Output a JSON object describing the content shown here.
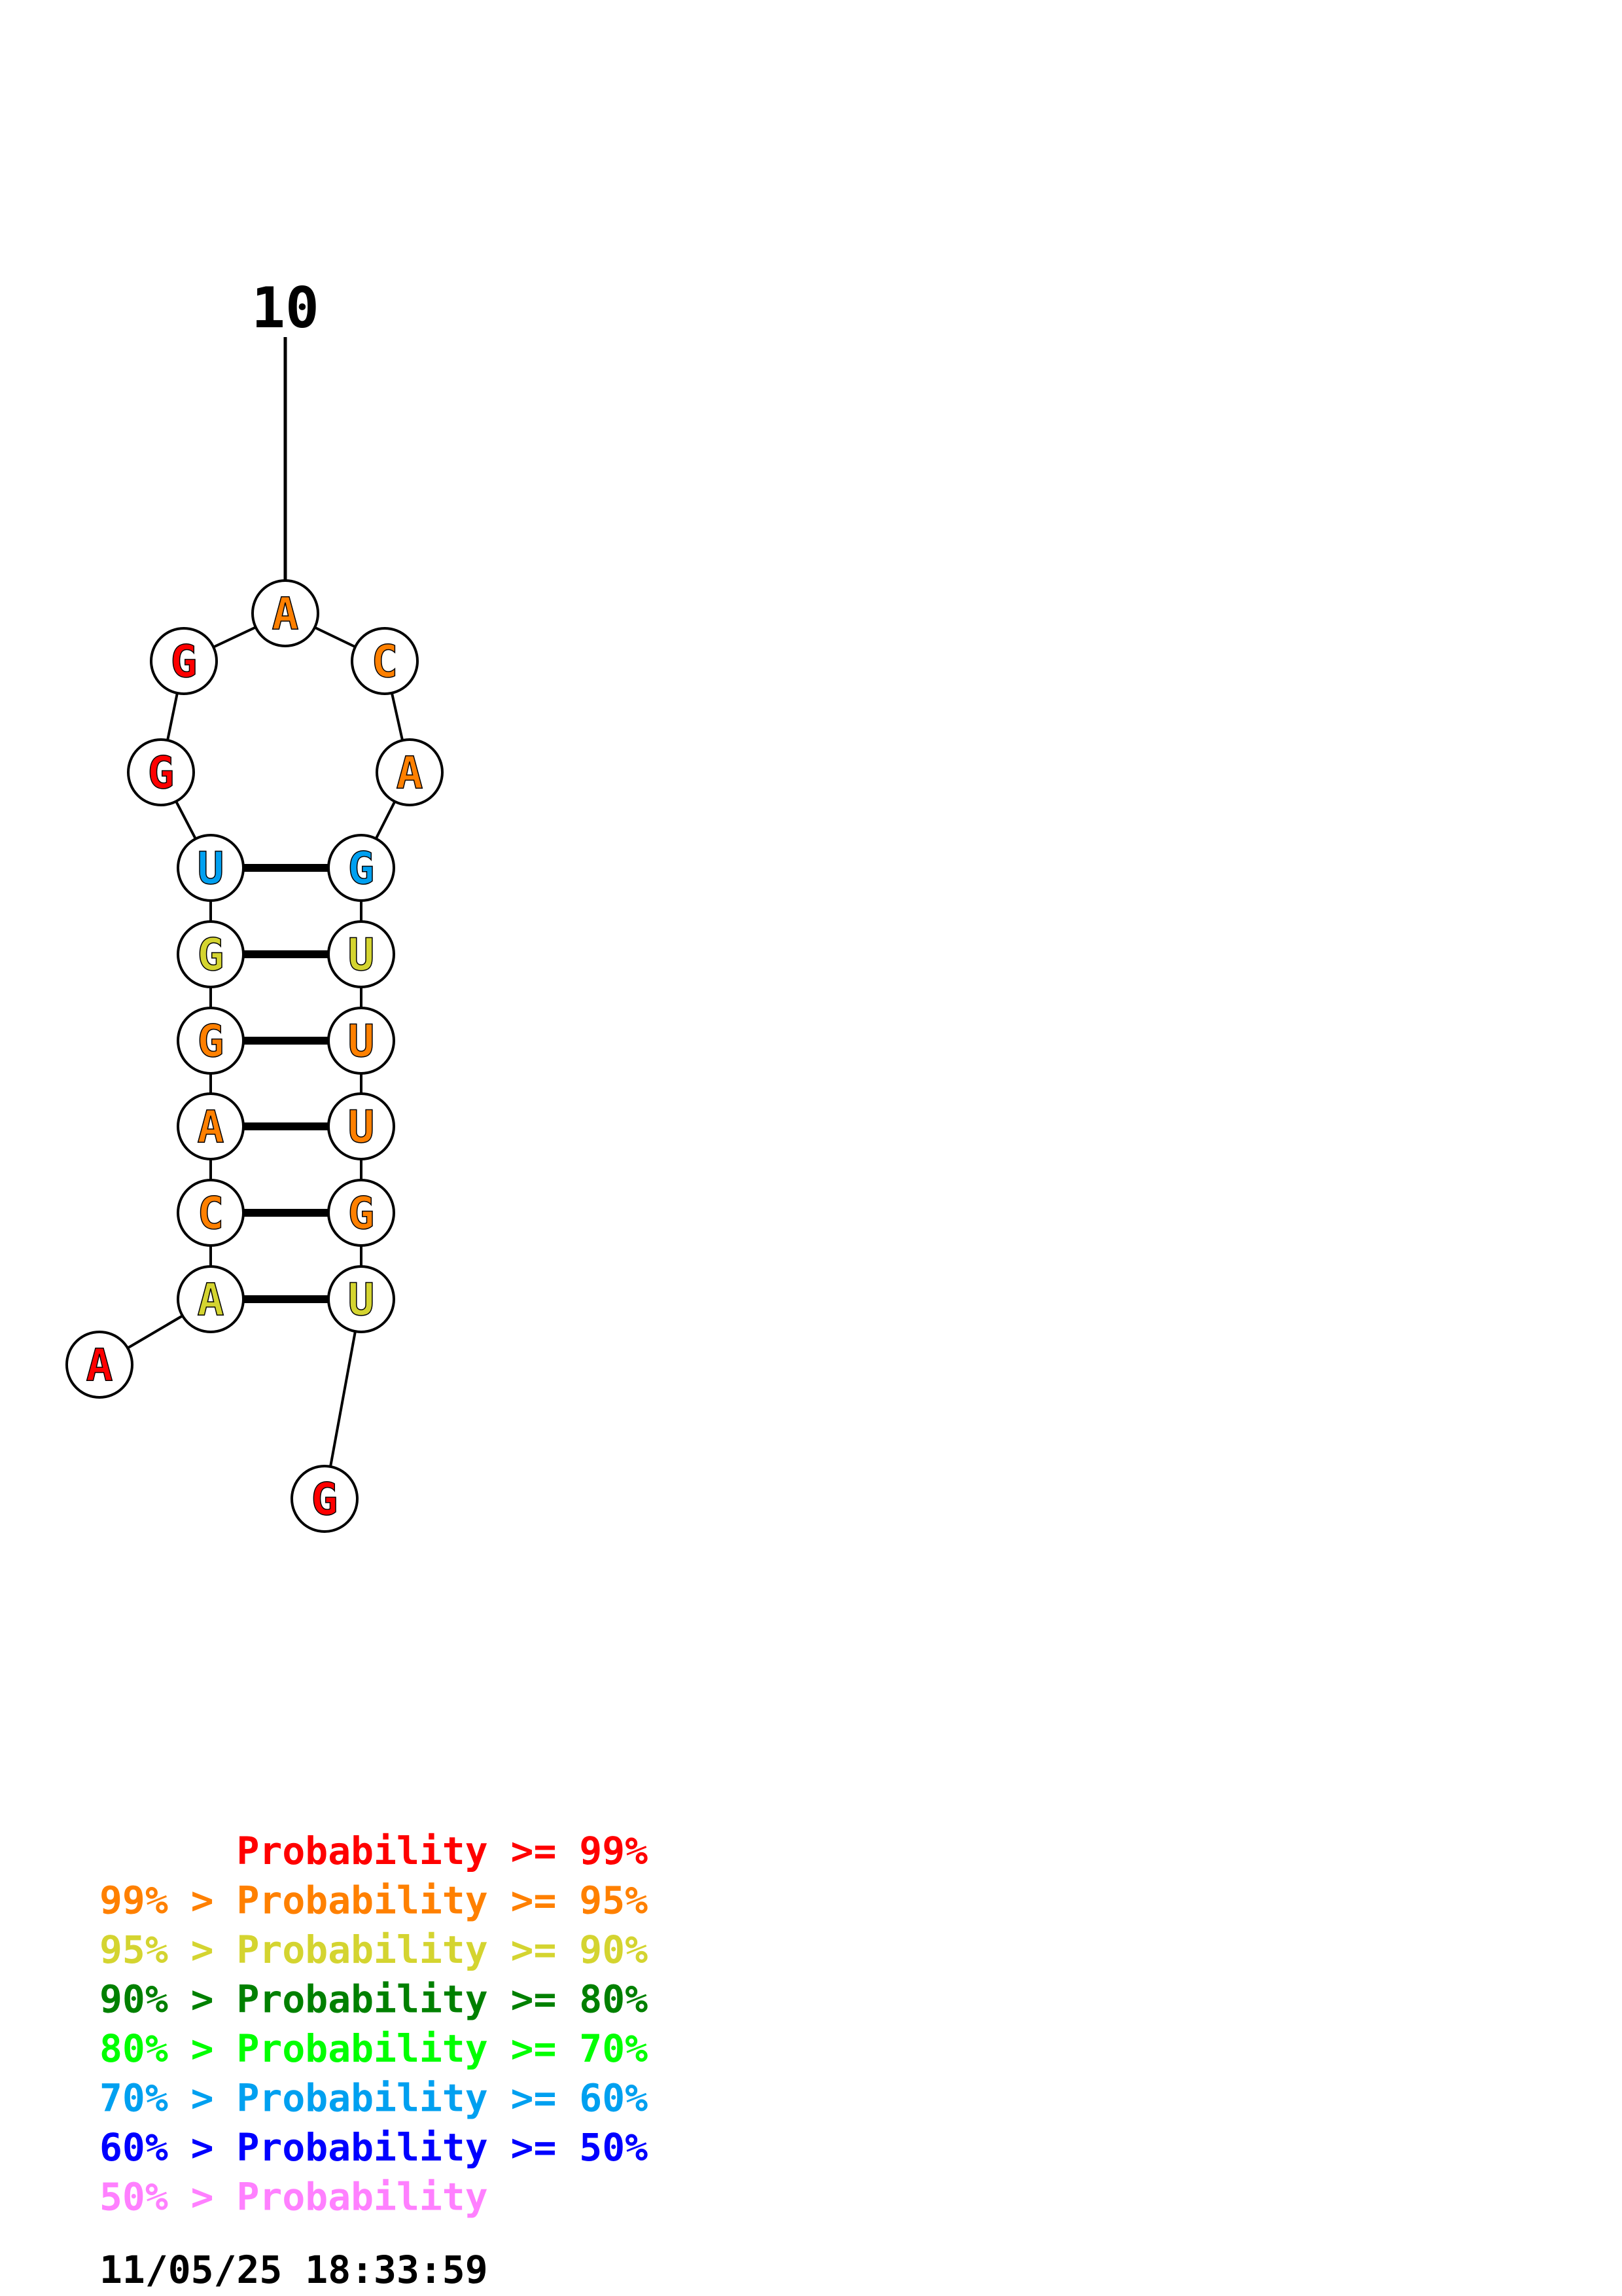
{
  "structure": {
    "label_number": "10",
    "nucleotides": [
      {
        "base": "A",
        "tier": 0
      },
      {
        "base": "A",
        "tier": 2
      },
      {
        "base": "C",
        "tier": 1
      },
      {
        "base": "A",
        "tier": 1
      },
      {
        "base": "G",
        "tier": 1
      },
      {
        "base": "G",
        "tier": 2
      },
      {
        "base": "U",
        "tier": 5
      },
      {
        "base": "G",
        "tier": 0
      },
      {
        "base": "G",
        "tier": 0
      },
      {
        "base": "A",
        "tier": 1
      },
      {
        "base": "C",
        "tier": 1
      },
      {
        "base": "A",
        "tier": 1
      },
      {
        "base": "G",
        "tier": 5
      },
      {
        "base": "U",
        "tier": 2
      },
      {
        "base": "U",
        "tier": 1
      },
      {
        "base": "U",
        "tier": 1
      },
      {
        "base": "G",
        "tier": 1
      },
      {
        "base": "U",
        "tier": 2
      },
      {
        "base": "G",
        "tier": 0
      }
    ],
    "pairs": [
      [
        2,
        18
      ],
      [
        3,
        17
      ],
      [
        4,
        16
      ],
      [
        5,
        15
      ],
      [
        6,
        14
      ],
      [
        7,
        13
      ]
    ]
  },
  "legend": {
    "colors": [
      "#ff0000",
      "#ff8000",
      "#d4d430",
      "#008000",
      "#00ff00",
      "#00a0f0",
      "#0000ff",
      "#ff80ff"
    ],
    "lines": [
      "      Probability >= 99%",
      "99% > Probability >= 95%",
      "95% > Probability >= 90%",
      "90% > Probability >= 80%",
      "80% > Probability >= 70%",
      "70% > Probability >= 60%",
      "60% > Probability >= 50%",
      "50% > Probability"
    ]
  },
  "timestamp": "11/05/25 18:33:59"
}
